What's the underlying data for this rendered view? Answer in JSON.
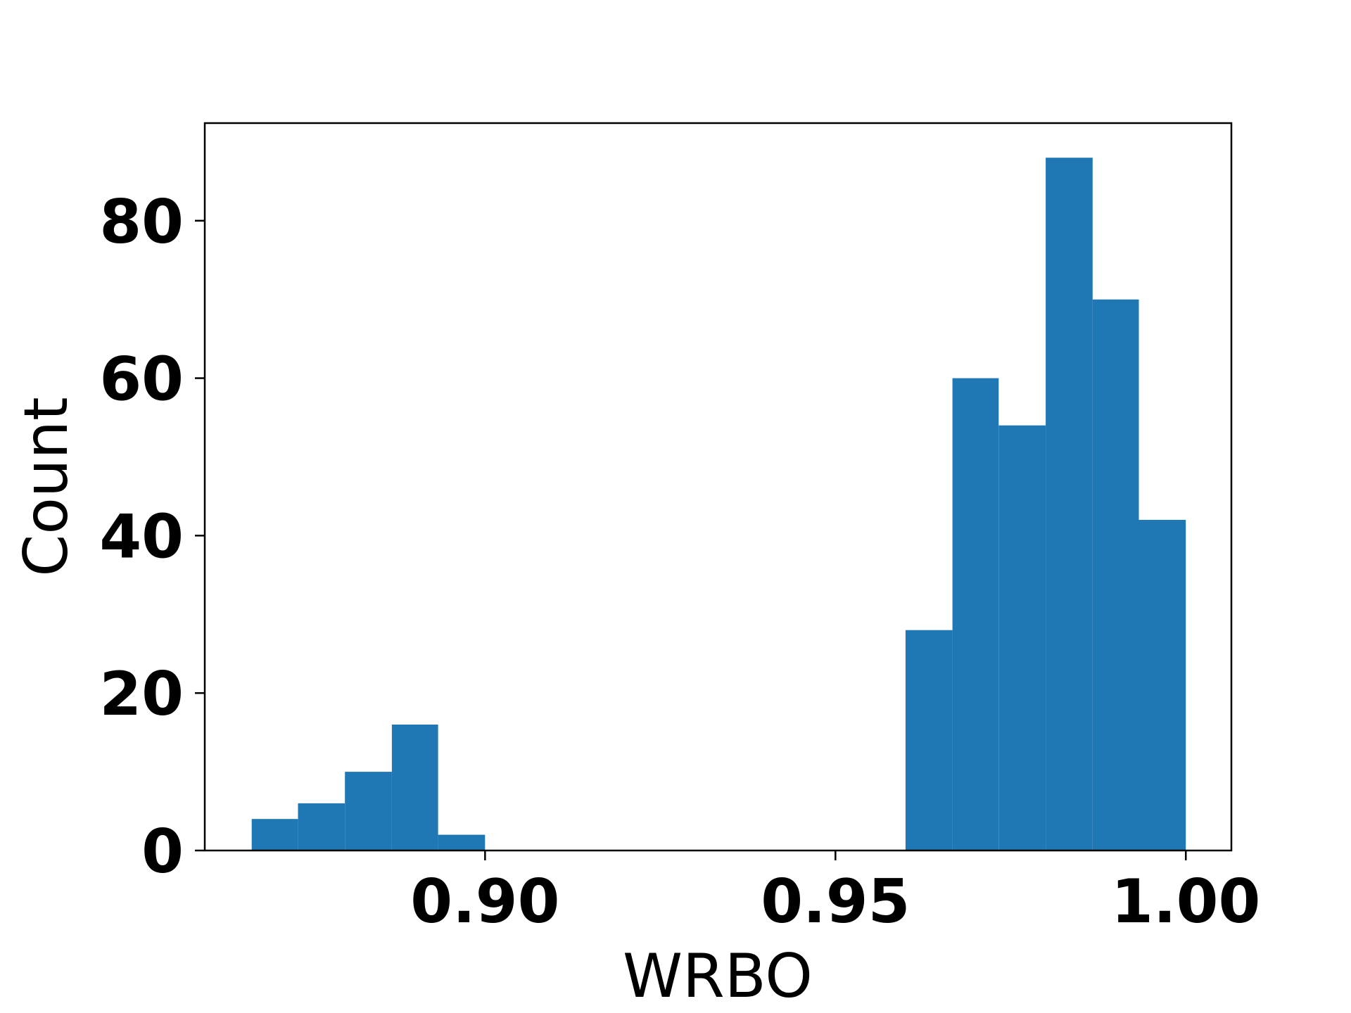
{
  "chart_data": {
    "type": "bar",
    "xlabel": "WRBO",
    "ylabel": "Count",
    "xlim": [
      0.86,
      1.0065
    ],
    "ylim": [
      0,
      92.4
    ],
    "x_ticks": [
      {
        "value": 0.9,
        "label": "0.90"
      },
      {
        "value": 0.95,
        "label": "0.95"
      },
      {
        "value": 1.0,
        "label": "1.00"
      }
    ],
    "y_ticks": [
      {
        "value": 0,
        "label": "0"
      },
      {
        "value": 20,
        "label": "20"
      },
      {
        "value": 40,
        "label": "40"
      },
      {
        "value": 60,
        "label": "60"
      },
      {
        "value": 80,
        "label": "80"
      }
    ],
    "bin_width": 0.00667,
    "bins": [
      {
        "start": 0.8667,
        "end": 0.8733,
        "count": 4
      },
      {
        "start": 0.8733,
        "end": 0.88,
        "count": 6
      },
      {
        "start": 0.88,
        "end": 0.8867,
        "count": 10
      },
      {
        "start": 0.8867,
        "end": 0.8933,
        "count": 16
      },
      {
        "start": 0.8933,
        "end": 0.9,
        "count": 2
      },
      {
        "start": 0.96,
        "end": 0.9667,
        "count": 28
      },
      {
        "start": 0.9667,
        "end": 0.9733,
        "count": 60
      },
      {
        "start": 0.9733,
        "end": 0.98,
        "count": 54
      },
      {
        "start": 0.98,
        "end": 0.9867,
        "count": 88
      },
      {
        "start": 0.9867,
        "end": 0.9933,
        "count": 70
      },
      {
        "start": 0.9933,
        "end": 1.0,
        "count": 42
      }
    ],
    "bar_color": "#1f77b4",
    "grid": false,
    "legend": "none"
  }
}
